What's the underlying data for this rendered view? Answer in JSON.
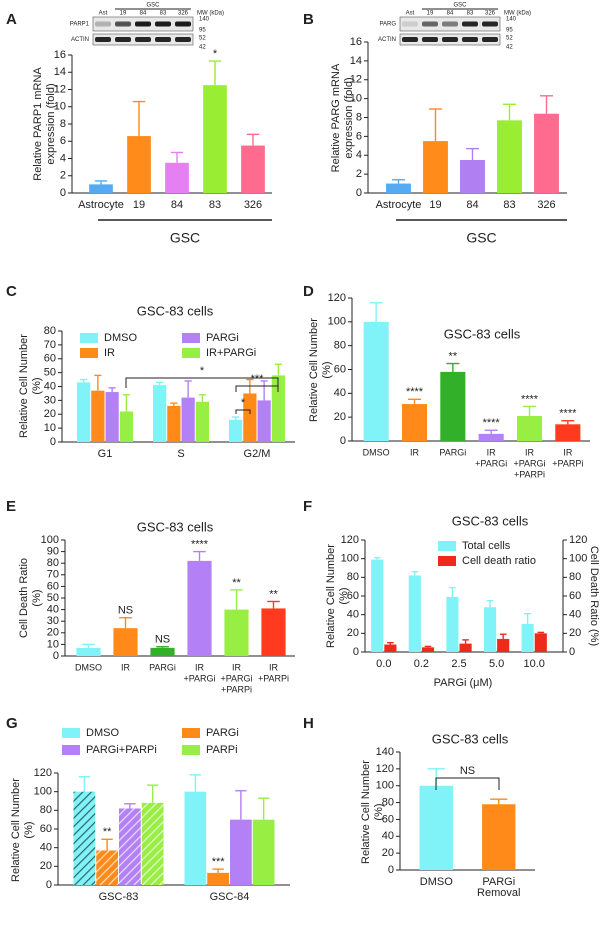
{
  "chart_data": [
    {
      "type": "bar",
      "panel": "A",
      "y_label": [
        "Relative PARP1 mRNA",
        "expression (fold)"
      ],
      "categories": [
        "Astrocyte",
        "19",
        "84",
        "83",
        "326"
      ],
      "values": [
        1,
        6.6,
        3.5,
        12.5,
        5.5
      ],
      "errors": [
        0.4,
        4.0,
        1.2,
        2.8,
        1.3
      ],
      "colors": [
        "#55aaf2",
        "#ff8c1a",
        "#e480f2",
        "#99ee33",
        "#ff6b8e"
      ],
      "annotations": [
        null,
        null,
        null,
        "*",
        null
      ],
      "group_label": "GSC",
      "ylim": [
        0,
        16
      ],
      "yticks": [
        0,
        2,
        4,
        6,
        8,
        10,
        12,
        14,
        16
      ],
      "blot": {
        "group": "GSC",
        "lanes": [
          "Ast",
          "19",
          "84",
          "83",
          "326"
        ],
        "mw_title": "MW (kDa)",
        "proteins": [
          "PARP1",
          "ACTIN"
        ],
        "mw": [
          140,
          95,
          52,
          42
        ]
      }
    },
    {
      "type": "bar",
      "panel": "B",
      "y_label": [
        "Relative PARG mRNA",
        "expression (fold)"
      ],
      "categories": [
        "Astrocyte",
        "19",
        "84",
        "83",
        "326"
      ],
      "values": [
        1,
        5.5,
        3.5,
        7.7,
        8.4
      ],
      "errors": [
        0.4,
        3.4,
        1.2,
        1.7,
        1.9
      ],
      "colors": [
        "#55aaf2",
        "#ff8c1a",
        "#b07ff2",
        "#99ee33",
        "#ff6b8e"
      ],
      "group_label": "GSC",
      "ylim": [
        0,
        16
      ],
      "yticks": [
        0,
        2,
        4,
        6,
        8,
        10,
        12,
        14,
        16
      ],
      "blot": {
        "group": "GSC",
        "lanes": [
          "Ast",
          "19",
          "84",
          "83",
          "326"
        ],
        "mw_title": "MW (kDa)",
        "proteins": [
          "PARG",
          "ACTIN"
        ],
        "mw": [
          140,
          95,
          52,
          42
        ]
      }
    },
    {
      "type": "bar",
      "panel": "C",
      "title": "GSC-83 cells",
      "y_label": [
        "Relative Cell Number",
        "(%)"
      ],
      "categories": [
        "G1",
        "S",
        "G2/M"
      ],
      "series": [
        {
          "name": "DMSO",
          "color": "#7ff3f7",
          "values": [
            43,
            41,
            16
          ],
          "errors": [
            2,
            2,
            2
          ]
        },
        {
          "name": "IR",
          "color": "#ff8a1a",
          "values": [
            37,
            26,
            35
          ],
          "errors": [
            11,
            2,
            10
          ]
        },
        {
          "name": "PARGi",
          "color": "#b380f5",
          "values": [
            36,
            32,
            30
          ],
          "errors": [
            3,
            12,
            14
          ]
        },
        {
          "name": "IR+PARGi",
          "color": "#99ee44",
          "values": [
            22,
            29,
            48
          ],
          "errors": [
            12,
            5,
            8
          ]
        }
      ],
      "brackets": [
        "*",
        "*",
        "***"
      ],
      "ylim": [
        0,
        80
      ],
      "yticks": [
        0,
        10,
        20,
        30,
        40,
        50,
        60,
        70,
        80
      ]
    },
    {
      "type": "bar",
      "panel": "D",
      "title": "GSC-83 cells",
      "y_label": [
        "Relative Cell Number",
        "(%)"
      ],
      "categories": [
        [
          "DMSO"
        ],
        [
          "IR"
        ],
        [
          "PARGi"
        ],
        [
          "IR",
          "+PARGi"
        ],
        [
          "IR",
          "+PARGi",
          "+PARPi"
        ],
        [
          "IR",
          "+PARPi"
        ]
      ],
      "values": [
        100,
        31,
        58,
        6,
        21,
        14
      ],
      "errors": [
        16,
        4,
        7,
        3,
        8,
        3
      ],
      "colors": [
        "#7ff3f7",
        "#ff8a1a",
        "#33b02a",
        "#b380f5",
        "#99ee44",
        "#ff3a1f"
      ],
      "annotations": [
        null,
        "****",
        "**",
        "****",
        "****",
        "****"
      ],
      "ylim": [
        0,
        120
      ],
      "yticks": [
        0,
        20,
        40,
        60,
        80,
        100,
        120
      ]
    },
    {
      "type": "bar",
      "panel": "E",
      "title": "GSC-83 cells",
      "y_label": [
        "Cell Death Ratio",
        "(%)"
      ],
      "categories": [
        [
          "DMSO"
        ],
        [
          "IR"
        ],
        [
          "PARGi"
        ],
        [
          "IR",
          "+PARGi"
        ],
        [
          "IR",
          "+PARGi",
          "+PARPi"
        ],
        [
          "IR",
          "+PARPi"
        ]
      ],
      "values": [
        7,
        24,
        7,
        82,
        40,
        41
      ],
      "errors": [
        3,
        9,
        1,
        8,
        17,
        6
      ],
      "colors": [
        "#7ff3f7",
        "#ff8a1a",
        "#33b02a",
        "#b380f5",
        "#99ee44",
        "#ff3a1f"
      ],
      "annotations": [
        null,
        "NS",
        "NS",
        "****",
        "**",
        "**"
      ],
      "ylim": [
        0,
        100
      ],
      "yticks": [
        0,
        10,
        20,
        30,
        40,
        50,
        60,
        70,
        80,
        90,
        100
      ]
    },
    {
      "type": "bar",
      "panel": "F",
      "title": "GSC-83 cells",
      "y_label": [
        "Relative Cell Number",
        "(%)"
      ],
      "y2_label": [
        "Cell Death Ratio (%)"
      ],
      "x_label": "PARGi (μM)",
      "categories": [
        "0.0",
        "0.2",
        "2.5",
        "5.0",
        "10.0"
      ],
      "series": [
        {
          "name": "Total cells",
          "color": "#7ff3f7",
          "values": [
            99,
            82,
            59,
            48,
            30
          ],
          "errors": [
            2,
            4,
            10,
            7,
            11
          ]
        },
        {
          "name": "Cell death ratio",
          "color": "#ee2a1a",
          "axis": "y2",
          "values": [
            8,
            5,
            9,
            14,
            20
          ],
          "errors": [
            2,
            1,
            4,
            5,
            1
          ]
        }
      ],
      "ylim": [
        0,
        120
      ],
      "yticks": [
        0,
        20,
        40,
        60,
        80,
        100,
        120
      ],
      "y2lim": [
        0,
        120
      ],
      "y2ticks": [
        0,
        20,
        40,
        60,
        80,
        100,
        120
      ]
    },
    {
      "type": "bar",
      "panel": "G",
      "y_label": [
        "Relative Cell Number",
        "(%)"
      ],
      "categories": [
        "GSC-83",
        "GSC-84"
      ],
      "hatch": [
        true,
        false
      ],
      "series": [
        {
          "name": "DMSO",
          "color": "#7ff3f7",
          "values": [
            100,
            100
          ],
          "errors": [
            16,
            18
          ]
        },
        {
          "name": "PARGi",
          "color": "#ff8a1a",
          "values": [
            37,
            13
          ],
          "errors": [
            12,
            4
          ],
          "annotations": [
            "**",
            "***"
          ]
        },
        {
          "name": "PARGi+PARPi",
          "color": "#b380f5",
          "values": [
            82,
            70
          ],
          "errors": [
            5,
            31
          ]
        },
        {
          "name": "PARPi",
          "color": "#99ee44",
          "values": [
            88,
            70
          ],
          "errors": [
            19,
            23
          ]
        }
      ],
      "ylim": [
        0,
        120
      ],
      "yticks": [
        0,
        20,
        40,
        60,
        80,
        100,
        120
      ]
    },
    {
      "type": "bar",
      "panel": "H",
      "title": "GSC-83 cells",
      "y_label": [
        "Relative Cell Number",
        "(%)"
      ],
      "categories": [
        [
          "DMSO"
        ],
        [
          "PARGi",
          "Removal"
        ]
      ],
      "values": [
        100,
        78
      ],
      "errors": [
        20,
        6
      ],
      "colors": [
        "#7ff3f7",
        "#ff8a1a"
      ],
      "brackets": [
        "NS"
      ],
      "ylim": [
        0,
        140
      ],
      "yticks": [
        0,
        20,
        40,
        60,
        80,
        100,
        120,
        140
      ]
    }
  ]
}
